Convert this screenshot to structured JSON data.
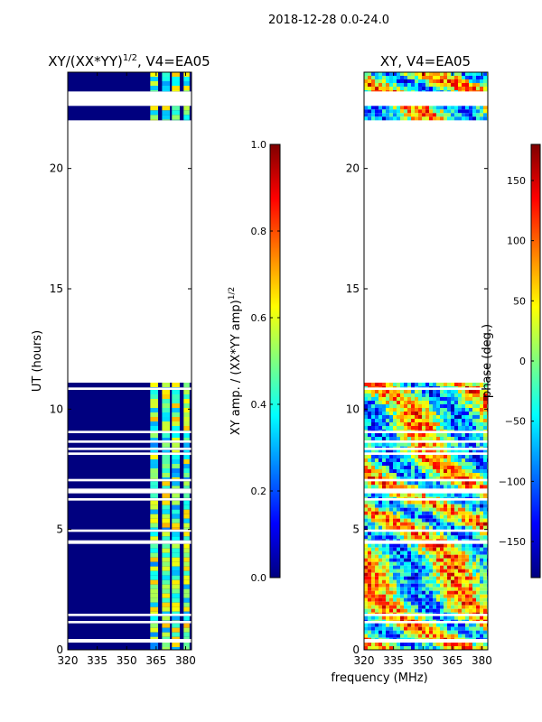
{
  "figure": {
    "suptitle": "2018-12-28 0.0-24.0",
    "shared_xlabel": "frequency (MHz)"
  },
  "colors": {
    "panel_background": "#00007f",
    "jet": [
      "#00007f",
      "#0000ff",
      "#007fff",
      "#00ffff",
      "#7fff7f",
      "#ffff00",
      "#ff7f00",
      "#ff0000",
      "#7f0000"
    ]
  },
  "chart_data": [
    {
      "type": "heatmap",
      "title": "XY/(XX*YY)^1/2, V4=EA05",
      "title_main": "XY/(XX*YY)",
      "title_exponent": "1/2",
      "title_suffix": ", V4=EA05",
      "xlabel": "",
      "ylabel": "UT (hours)",
      "xlim": [
        320,
        383
      ],
      "ylim": [
        0,
        24
      ],
      "xticks": [
        320,
        335,
        350,
        365,
        380
      ],
      "yticks": [
        0,
        5,
        10,
        15,
        20
      ],
      "data_bands_hours": [
        [
          0.0,
          0.3
        ],
        [
          0.45,
          1.1
        ],
        [
          1.2,
          1.4
        ],
        [
          1.5,
          4.4
        ],
        [
          4.55,
          4.9
        ],
        [
          5.0,
          6.2
        ],
        [
          6.3,
          6.5
        ],
        [
          6.7,
          7.0
        ],
        [
          7.1,
          8.1
        ],
        [
          8.2,
          8.3
        ],
        [
          8.4,
          8.6
        ],
        [
          8.7,
          9.0
        ],
        [
          9.1,
          10.8
        ],
        [
          10.9,
          11.1
        ],
        [
          22.0,
          22.6
        ],
        [
          23.2,
          24.0
        ]
      ],
      "bright_channels_mhz": [
        [
          362,
          366
        ],
        [
          368,
          372
        ],
        [
          373,
          377
        ],
        [
          379,
          382
        ]
      ],
      "colorbar": {
        "label": "XY amp. / (XX*YY amp)^1/2",
        "label_main": "XY amp. / (XX*YY amp)",
        "label_exponent": "1/2",
        "range": [
          0.0,
          1.0
        ],
        "ticks": [
          "0.0",
          "0.2",
          "0.4",
          "0.6",
          "0.8",
          "1.0"
        ]
      }
    },
    {
      "type": "heatmap",
      "title": "XY, V4=EA05",
      "xlabel": "frequency (MHz)",
      "ylabel": "",
      "xlim": [
        320,
        383
      ],
      "ylim": [
        0,
        24
      ],
      "xticks": [
        320,
        335,
        350,
        365,
        380
      ],
      "yticks": [
        0,
        5,
        10,
        15,
        20
      ],
      "data_bands_hours": [
        [
          0.0,
          0.3
        ],
        [
          0.45,
          1.1
        ],
        [
          1.2,
          1.4
        ],
        [
          1.5,
          4.4
        ],
        [
          4.55,
          4.9
        ],
        [
          5.0,
          6.2
        ],
        [
          6.3,
          6.5
        ],
        [
          6.7,
          7.0
        ],
        [
          7.1,
          8.1
        ],
        [
          8.2,
          8.3
        ],
        [
          8.4,
          8.6
        ],
        [
          8.7,
          9.0
        ],
        [
          9.1,
          10.8
        ],
        [
          10.9,
          11.1
        ],
        [
          22.0,
          22.6
        ],
        [
          23.2,
          24.0
        ]
      ],
      "colorbar": {
        "label": "phase (deg.)",
        "range": [
          -180,
          180
        ],
        "ticks": [
          "150",
          "100",
          "50",
          "0",
          "−50",
          "−100",
          "−150"
        ],
        "tick_values": [
          150,
          100,
          50,
          0,
          -50,
          -100,
          -150
        ]
      }
    }
  ]
}
